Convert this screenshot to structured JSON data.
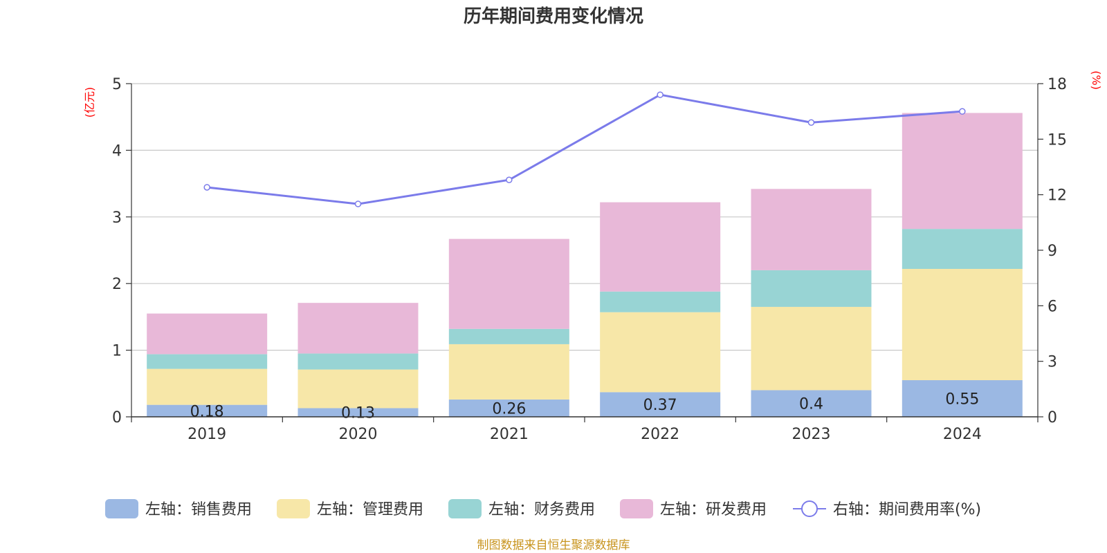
{
  "chart_data": {
    "type": "bar",
    "stacked": true,
    "title": "历年期间费用变化情况",
    "categories": [
      "2019",
      "2020",
      "2021",
      "2022",
      "2023",
      "2024"
    ],
    "y_left": {
      "unit": "(亿元)",
      "ylim": [
        0,
        5
      ],
      "ticks": [
        "0",
        "1",
        "2",
        "3",
        "4",
        "5"
      ]
    },
    "y_right": {
      "unit": "(%)",
      "ylim": [
        0,
        18
      ],
      "ticks": [
        "0",
        "3",
        "6",
        "9",
        "12",
        "15",
        "18"
      ]
    },
    "series": [
      {
        "name": "左轴：销售费用",
        "axis": "left",
        "color": "#9bb8e3",
        "values": [
          0.18,
          0.13,
          0.26,
          0.37,
          0.4,
          0.55
        ]
      },
      {
        "name": "左轴：管理费用",
        "axis": "left",
        "color": "#f7e7a8",
        "values": [
          0.54,
          0.58,
          0.83,
          1.2,
          1.25,
          1.67
        ]
      },
      {
        "name": "左轴：财务费用",
        "axis": "left",
        "color": "#98d4d4",
        "values": [
          0.22,
          0.24,
          0.23,
          0.31,
          0.55,
          0.6
        ]
      },
      {
        "name": "左轴：研发费用",
        "axis": "left",
        "color": "#e8b8d8",
        "values": [
          0.61,
          0.76,
          1.35,
          1.34,
          1.22,
          1.74
        ]
      },
      {
        "name": "右轴：期间费用率(%)",
        "axis": "right",
        "type": "line",
        "color": "#7b7bea",
        "values": [
          12.4,
          11.5,
          12.8,
          17.4,
          15.9,
          16.5
        ]
      }
    ],
    "data_labels": [
      "0.18",
      "0.13",
      "0.26",
      "0.37",
      "0.4",
      "0.55"
    ],
    "grid": true,
    "legend_position": "bottom"
  },
  "source_note": "制图数据来自恒生聚源数据库"
}
